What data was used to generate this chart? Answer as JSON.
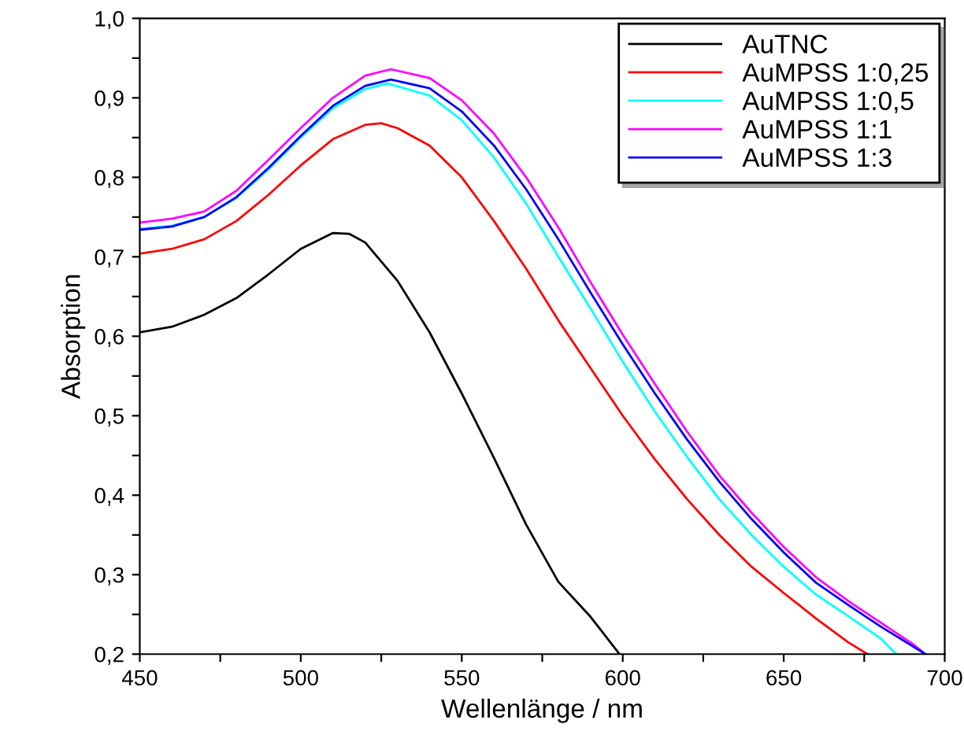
{
  "chart_data": {
    "type": "line",
    "xlabel": "Wellenlänge / nm",
    "ylabel": "Absorption",
    "xlim": [
      450,
      700
    ],
    "ylim": [
      0.2,
      1.0
    ],
    "xticks": [
      {
        "value": 450,
        "label": "450"
      },
      {
        "value": 475,
        "label": null
      },
      {
        "value": 500,
        "label": "500"
      },
      {
        "value": 525,
        "label": null
      },
      {
        "value": 550,
        "label": "550"
      },
      {
        "value": 575,
        "label": null
      },
      {
        "value": 600,
        "label": "600"
      },
      {
        "value": 625,
        "label": null
      },
      {
        "value": 650,
        "label": "650"
      },
      {
        "value": 675,
        "label": null
      },
      {
        "value": 700,
        "label": "700"
      }
    ],
    "yticks": [
      {
        "value": 0.2,
        "label": "0,2"
      },
      {
        "value": 0.25,
        "label": null
      },
      {
        "value": 0.3,
        "label": "0,3"
      },
      {
        "value": 0.35,
        "label": null
      },
      {
        "value": 0.4,
        "label": "0,4"
      },
      {
        "value": 0.45,
        "label": null
      },
      {
        "value": 0.5,
        "label": "0,5"
      },
      {
        "value": 0.55,
        "label": null
      },
      {
        "value": 0.6,
        "label": "0,6"
      },
      {
        "value": 0.65,
        "label": null
      },
      {
        "value": 0.7,
        "label": "0,7"
      },
      {
        "value": 0.75,
        "label": null
      },
      {
        "value": 0.8,
        "label": "0,8"
      },
      {
        "value": 0.85,
        "label": null
      },
      {
        "value": 0.9,
        "label": "0,9"
      },
      {
        "value": 0.95,
        "label": null
      },
      {
        "value": 1.0,
        "label": "1,0"
      }
    ],
    "grid": false,
    "legend": "top right",
    "marker": "none",
    "line_style": "solid",
    "series": [
      {
        "name": "AuTNC",
        "color": "#000000",
        "x": [
          450,
          460,
          470,
          480,
          490,
          500,
          510,
          515,
          520,
          530,
          540,
          550,
          560,
          570,
          580,
          590,
          599
        ],
        "values": [
          0.605,
          0.612,
          0.627,
          0.648,
          0.678,
          0.71,
          0.73,
          0.729,
          0.718,
          0.67,
          0.605,
          0.528,
          0.447,
          0.363,
          0.291,
          0.247,
          0.2
        ]
      },
      {
        "name": "AuMPSS 1:0,25",
        "color": "#ff0000",
        "x": [
          450,
          460,
          470,
          480,
          490,
          500,
          510,
          520,
          525,
          530,
          540,
          550,
          560,
          570,
          580,
          590,
          600,
          610,
          620,
          630,
          640,
          650,
          660,
          670,
          676
        ],
        "values": [
          0.704,
          0.71,
          0.722,
          0.745,
          0.778,
          0.815,
          0.848,
          0.866,
          0.868,
          0.862,
          0.84,
          0.8,
          0.745,
          0.685,
          0.62,
          0.56,
          0.5,
          0.445,
          0.395,
          0.35,
          0.31,
          0.277,
          0.245,
          0.215,
          0.2
        ]
      },
      {
        "name": "AuMPSS 1:0,5",
        "color": "#00ffff",
        "x": [
          450,
          460,
          470,
          480,
          490,
          500,
          510,
          520,
          527,
          540,
          550,
          560,
          570,
          580,
          590,
          600,
          610,
          620,
          630,
          640,
          650,
          660,
          670,
          680,
          685
        ],
        "values": [
          0.735,
          0.739,
          0.75,
          0.774,
          0.81,
          0.85,
          0.887,
          0.911,
          0.918,
          0.903,
          0.872,
          0.825,
          0.767,
          0.7,
          0.635,
          0.568,
          0.505,
          0.448,
          0.395,
          0.35,
          0.31,
          0.275,
          0.248,
          0.22,
          0.2
        ]
      },
      {
        "name": "AuMPSS 1:1",
        "color": "#ff00ff",
        "x": [
          450,
          460,
          470,
          480,
          490,
          500,
          510,
          520,
          528,
          540,
          550,
          560,
          570,
          580,
          590,
          600,
          610,
          620,
          630,
          640,
          650,
          660,
          670,
          680,
          690,
          694
        ],
        "values": [
          0.743,
          0.748,
          0.757,
          0.783,
          0.822,
          0.862,
          0.9,
          0.928,
          0.936,
          0.925,
          0.897,
          0.855,
          0.8,
          0.737,
          0.668,
          0.602,
          0.54,
          0.48,
          0.425,
          0.378,
          0.335,
          0.297,
          0.267,
          0.24,
          0.213,
          0.2
        ]
      },
      {
        "name": "AuMPSS 1:3",
        "color": "#0000ff",
        "x": [
          450,
          460,
          470,
          480,
          490,
          500,
          510,
          520,
          528,
          540,
          550,
          560,
          570,
          580,
          590,
          600,
          610,
          620,
          630,
          640,
          650,
          660,
          670,
          680,
          690,
          694
        ],
        "values": [
          0.734,
          0.738,
          0.75,
          0.775,
          0.812,
          0.852,
          0.89,
          0.915,
          0.923,
          0.912,
          0.883,
          0.84,
          0.785,
          0.722,
          0.655,
          0.59,
          0.528,
          0.47,
          0.417,
          0.37,
          0.328,
          0.29,
          0.262,
          0.235,
          0.21,
          0.2
        ]
      }
    ]
  }
}
